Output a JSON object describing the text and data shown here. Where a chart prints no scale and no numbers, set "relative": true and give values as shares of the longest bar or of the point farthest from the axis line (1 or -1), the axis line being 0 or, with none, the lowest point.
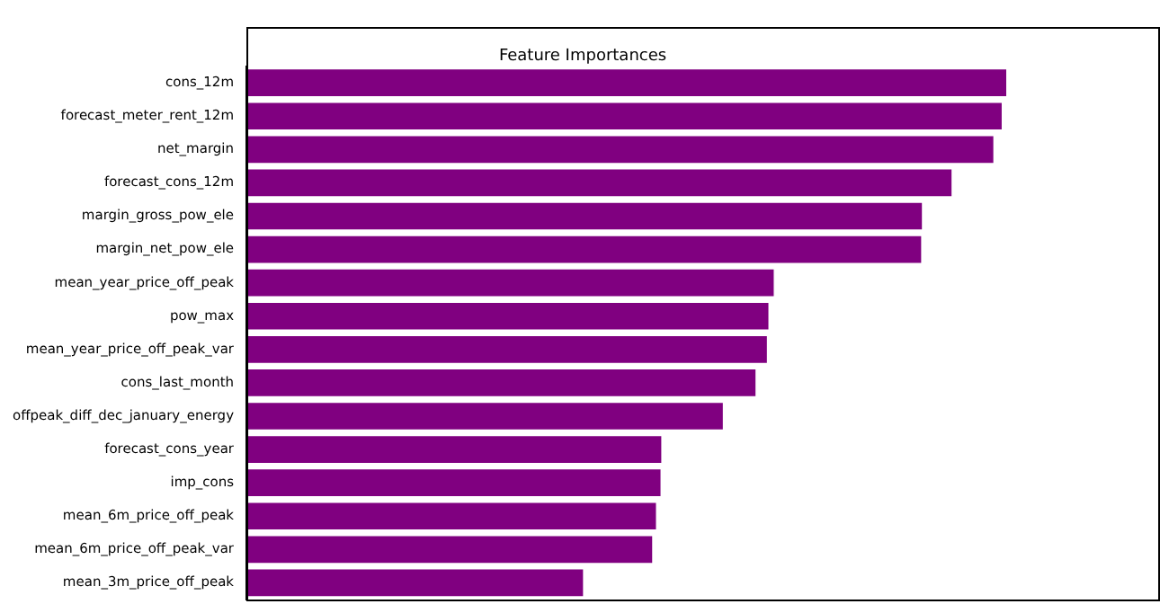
{
  "chart_data": {
    "type": "bar",
    "orientation": "horizontal",
    "relative": true,
    "title": "Feature Importances",
    "color": "#800080",
    "categories": [
      "cons_12m",
      "forecast_meter_rent_12m",
      "net_margin",
      "forecast_cons_12m",
      "margin_gross_pow_ele",
      "margin_net_pow_ele",
      "mean_year_price_off_peak",
      "pow_max",
      "mean_year_price_off_peak_var",
      "cons_last_month",
      "offpeak_diff_dec_january_energy",
      "forecast_cons_year",
      "imp_cons",
      "mean_6m_price_off_peak",
      "mean_6m_price_off_peak_var",
      "mean_3m_price_off_peak"
    ],
    "values": [
      1,
      0.994,
      0.983,
      0.928,
      0.889,
      0.888,
      0.694,
      0.687,
      0.685,
      0.67,
      0.627,
      0.546,
      0.545,
      0.539,
      0.534,
      0.443
    ],
    "grid": false,
    "legend": false
  }
}
